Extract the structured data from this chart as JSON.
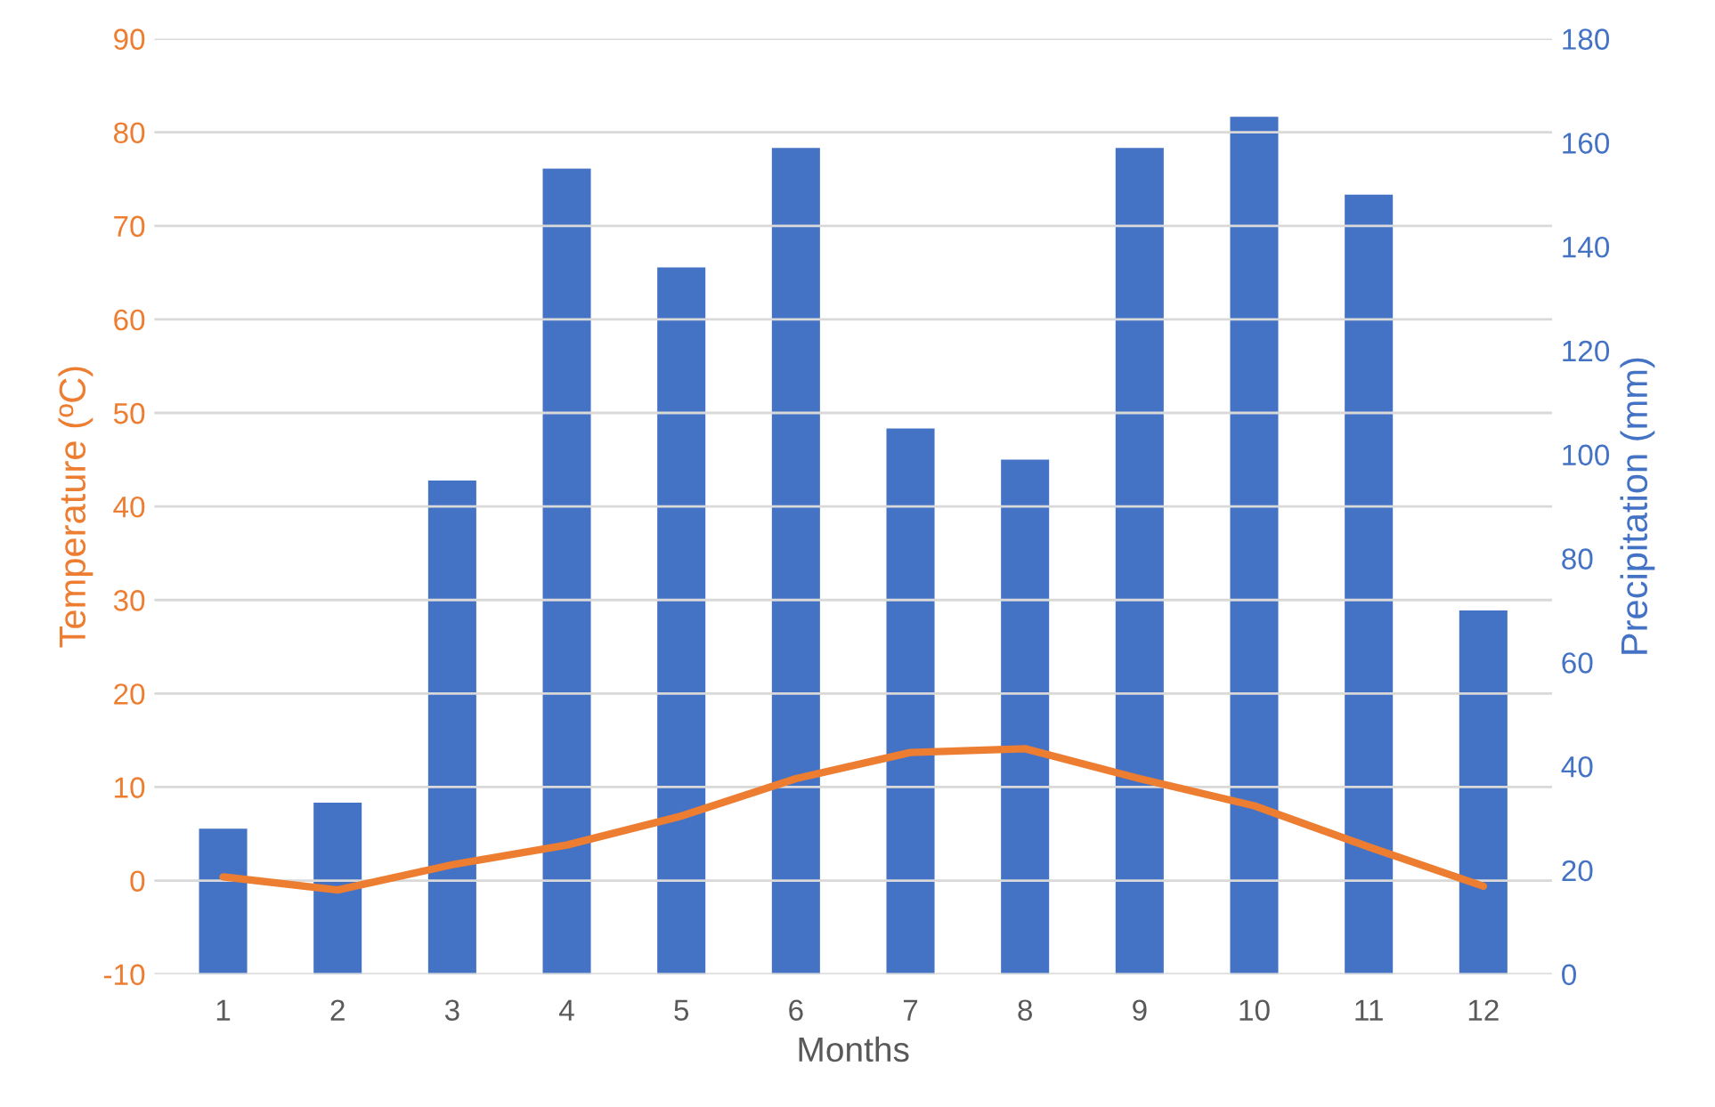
{
  "chart_data": {
    "type": "bar",
    "xlabel": "Months",
    "ylabel": "Temperature (ºC)",
    "y2label": "Precipitation (mm)",
    "categories": [
      "1",
      "2",
      "3",
      "4",
      "5",
      "6",
      "7",
      "8",
      "9",
      "10",
      "11",
      "12"
    ],
    "series": [
      {
        "axis": "y2",
        "color": "#4472c4",
        "values": [
          28,
          33,
          95,
          155,
          136,
          159,
          105,
          99,
          159,
          165,
          150,
          70
        ]
      },
      {
        "type": "line",
        "axis": "y",
        "color": "#ed7d31",
        "values": [
          0.4,
          -1,
          1.7,
          3.8,
          6.9,
          10.9,
          13.7,
          14.1,
          10.9,
          8,
          3.6,
          -0.6
        ]
      }
    ],
    "ylim": [
      -10,
      90
    ],
    "yticks": [
      -10,
      0,
      10,
      20,
      30,
      40,
      50,
      60,
      70,
      80,
      90
    ],
    "y2lim": [
      0,
      180
    ],
    "y2ticks": [
      0,
      20,
      40,
      60,
      80,
      100,
      120,
      140,
      160,
      180
    ],
    "grid": "y",
    "legend": false,
    "marker": "none",
    "line_style": "solid"
  }
}
